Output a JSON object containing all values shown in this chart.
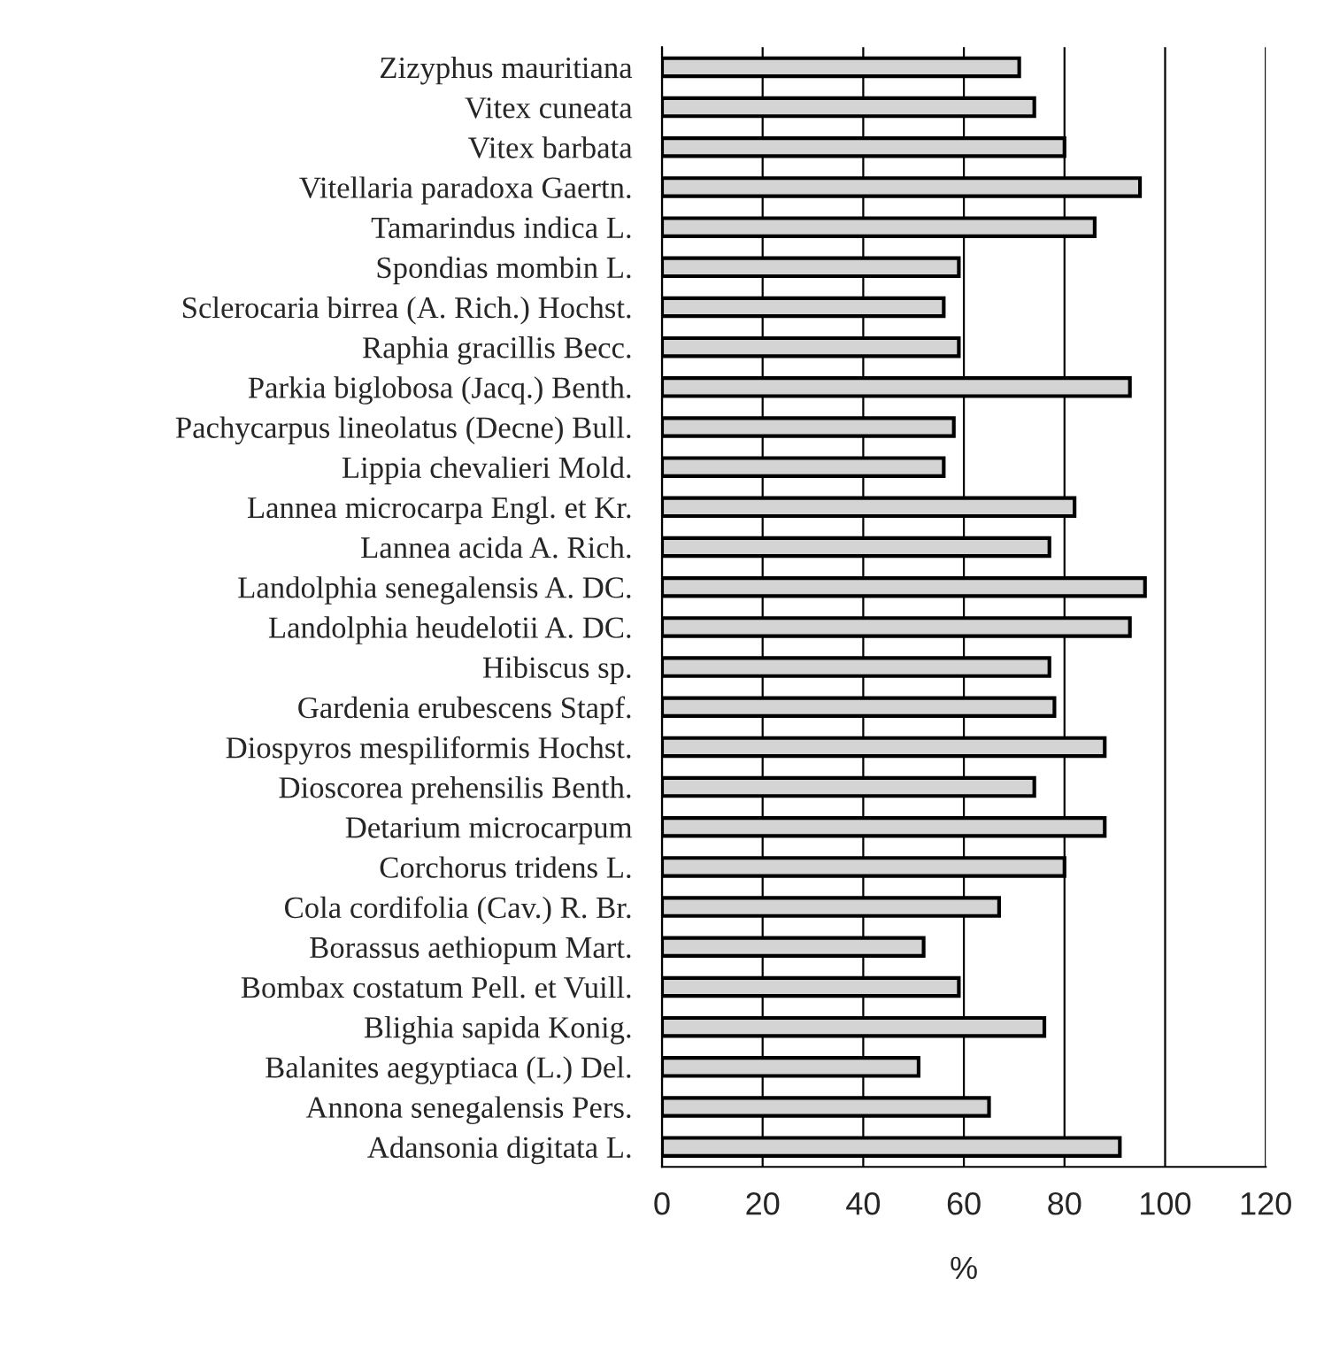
{
  "chart_data": {
    "type": "bar",
    "orientation": "horizontal",
    "xlabel": "%",
    "categories": [
      "Zizyphus mauritiana",
      "Vitex cuneata",
      "Vitex barbata",
      "Vitellaria paradoxa Gaertn.",
      "Tamarindus indica L.",
      "Spondias mombin L.",
      "Sclerocaria birrea (A. Rich.) Hochst.",
      "Raphia gracillis Becc.",
      "Parkia biglobosa (Jacq.) Benth.",
      "Pachycarpus lineolatus (Decne) Bull.",
      "Lippia chevalieri Mold.",
      "Lannea microcarpa Engl. et Kr.",
      "Lannea acida A. Rich.",
      "Landolphia senegalensis A. DC.",
      "Landolphia heudelotii A. DC.",
      "Hibiscus sp.",
      "Gardenia erubescens Stapf.",
      "Diospyros mespiliformis Hochst.",
      "Dioscorea prehensilis Benth.",
      "Detarium microcarpum",
      "Corchorus tridens L.",
      "Cola cordifolia (Cav.) R. Br.",
      "Borassus aethiopum Mart.",
      "Bombax costatum Pell. et Vuill.",
      "Blighia sapida Konig.",
      "Balanites aegyptiaca (L.) Del.",
      "Annona senegalensis Pers.",
      "Adansonia digitata L."
    ],
    "values": [
      71,
      74,
      80,
      95,
      86,
      59,
      56,
      59,
      93,
      58,
      56,
      82,
      77,
      96,
      93,
      77,
      78,
      88,
      74,
      88,
      80,
      67,
      52,
      59,
      76,
      51,
      65,
      91
    ],
    "color": "#d4d4d4",
    "xlim": [
      0,
      120
    ],
    "xticks": [
      0,
      20,
      40,
      60,
      80,
      100,
      120
    ],
    "grid": "x"
  }
}
